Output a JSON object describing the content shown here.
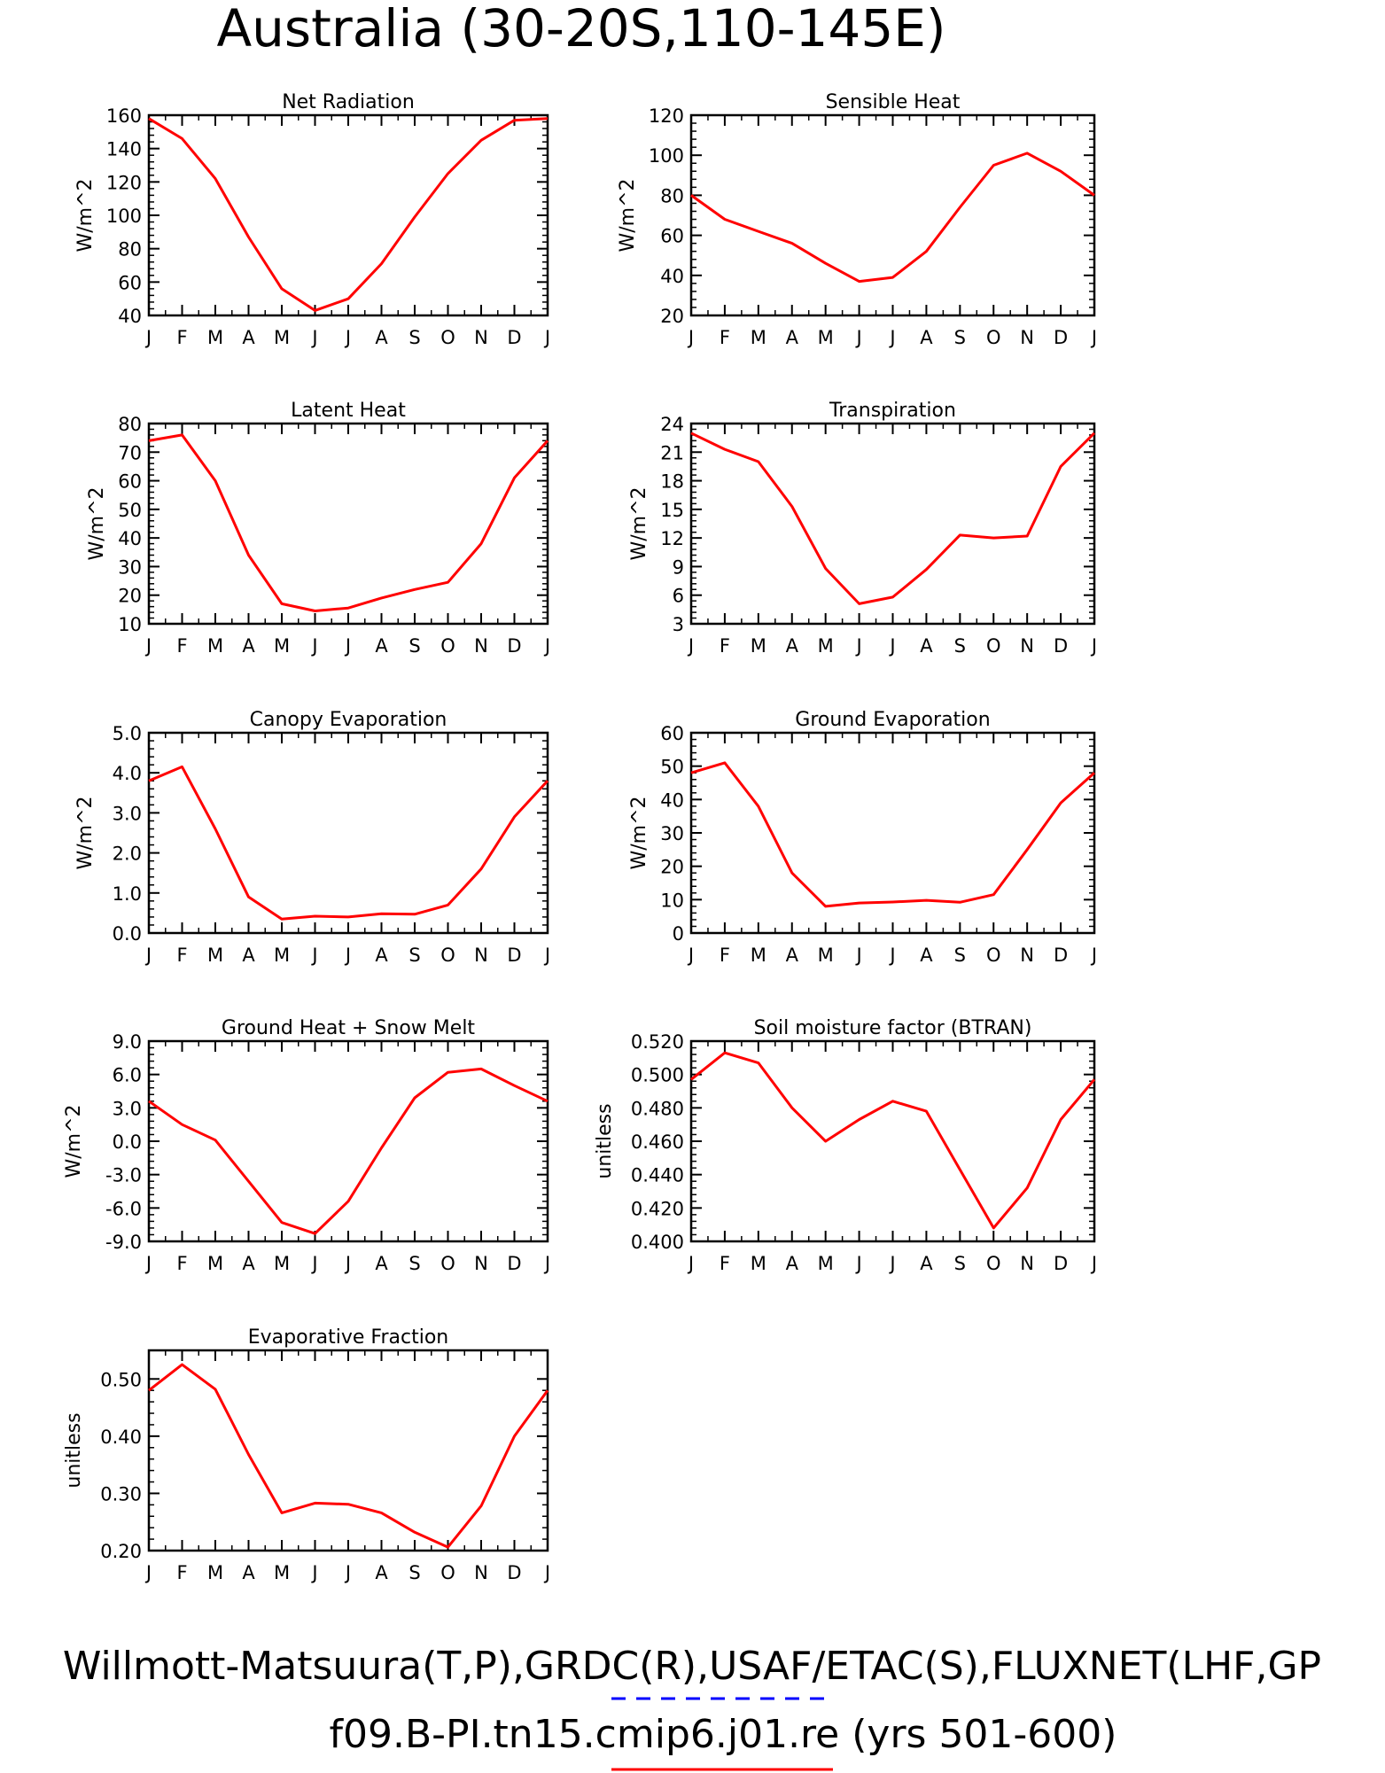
{
  "figure": {
    "title": "Australia (30-20S,110-145E)",
    "footer_line1": "Willmott-Matsuura(T,P),GRDC(R),USAF/ETAC(S),FLUXNET(LHF,GP",
    "footer_line2": "f09.B-PI.tn15.cmip6.j01.re (yrs 501-600)",
    "obs_line_color": "#0000ff",
    "model_line_color": "#ff0000"
  },
  "chart_data": [
    {
      "type": "line",
      "title": "Net Radiation",
      "ylabel": "W/m^2",
      "x": [
        "J",
        "F",
        "M",
        "A",
        "M",
        "J",
        "J",
        "A",
        "S",
        "O",
        "N",
        "D",
        "J"
      ],
      "ylim": [
        40,
        160
      ],
      "yticks": [
        "40",
        "60",
        "80",
        "100",
        "120",
        "140",
        "160"
      ],
      "series": [
        {
          "values": [
            158,
            146,
            122,
            87,
            56,
            43,
            50,
            71,
            99,
            125,
            145,
            157,
            158
          ]
        }
      ]
    },
    {
      "type": "line",
      "title": "Sensible Heat",
      "ylabel": "W/m^2",
      "x": [
        "J",
        "F",
        "M",
        "A",
        "M",
        "J",
        "J",
        "A",
        "S",
        "O",
        "N",
        "D",
        "J"
      ],
      "ylim": [
        20,
        120
      ],
      "yticks": [
        "20",
        "40",
        "60",
        "80",
        "100",
        "120"
      ],
      "series": [
        {
          "values": [
            80,
            68,
            62,
            56,
            46,
            37,
            39,
            52,
            74,
            95,
            101,
            92,
            80
          ]
        }
      ]
    },
    {
      "type": "line",
      "title": "Latent Heat",
      "ylabel": "W/m^2",
      "x": [
        "J",
        "F",
        "M",
        "A",
        "M",
        "J",
        "J",
        "A",
        "S",
        "O",
        "N",
        "D",
        "J"
      ],
      "ylim": [
        10,
        80
      ],
      "yticks": [
        "10",
        "20",
        "30",
        "40",
        "50",
        "60",
        "70",
        "80"
      ],
      "series": [
        {
          "values": [
            74,
            76,
            60,
            34,
            17,
            14.5,
            15.5,
            19,
            22,
            24.5,
            38,
            61,
            74
          ]
        }
      ]
    },
    {
      "type": "line",
      "title": "Transpiration",
      "ylabel": "W/m^2",
      "x": [
        "J",
        "F",
        "M",
        "A",
        "M",
        "J",
        "J",
        "A",
        "S",
        "O",
        "N",
        "D",
        "J"
      ],
      "ylim": [
        3,
        24
      ],
      "yticks": [
        "3",
        "6",
        "9",
        "12",
        "15",
        "18",
        "21",
        "24"
      ],
      "series": [
        {
          "values": [
            23,
            21.3,
            20,
            15.3,
            8.8,
            5.1,
            5.8,
            8.7,
            12.3,
            12,
            12.2,
            19.5,
            23
          ]
        }
      ]
    },
    {
      "type": "line",
      "title": "Canopy Evaporation",
      "ylabel": "W/m^2",
      "x": [
        "J",
        "F",
        "M",
        "A",
        "M",
        "J",
        "J",
        "A",
        "S",
        "O",
        "N",
        "D",
        "J"
      ],
      "ylim": [
        0,
        5
      ],
      "yticks": [
        "0.0",
        "1.0",
        "2.0",
        "3.0",
        "4.0",
        "5.0"
      ],
      "series": [
        {
          "values": [
            3.8,
            4.15,
            2.6,
            0.9,
            0.35,
            0.42,
            0.4,
            0.48,
            0.47,
            0.7,
            1.6,
            2.9,
            3.8
          ]
        }
      ]
    },
    {
      "type": "line",
      "title": "Ground Evaporation",
      "ylabel": "W/m^2",
      "x": [
        "J",
        "F",
        "M",
        "A",
        "M",
        "J",
        "J",
        "A",
        "S",
        "O",
        "N",
        "D",
        "J"
      ],
      "ylim": [
        0,
        60
      ],
      "yticks": [
        "0",
        "10",
        "20",
        "30",
        "40",
        "50",
        "60"
      ],
      "series": [
        {
          "values": [
            48,
            51,
            38,
            18,
            8,
            9,
            9.3,
            9.8,
            9.2,
            11.5,
            25,
            39,
            48
          ]
        }
      ]
    },
    {
      "type": "line",
      "title": "Ground Heat + Snow Melt",
      "ylabel": "W/m^2",
      "x": [
        "J",
        "F",
        "M",
        "A",
        "M",
        "J",
        "J",
        "A",
        "S",
        "O",
        "N",
        "D",
        "J"
      ],
      "ylim": [
        -9,
        9
      ],
      "yticks": [
        "-9.0",
        "-6.0",
        "-3.0",
        "0.0",
        "3.0",
        "6.0",
        "9.0"
      ],
      "series": [
        {
          "values": [
            3.6,
            1.5,
            0.1,
            -3.6,
            -7.3,
            -8.3,
            -5.4,
            -0.6,
            3.9,
            6.2,
            6.5,
            5.0,
            3.6
          ]
        }
      ]
    },
    {
      "type": "line",
      "title": "Soil moisture factor (BTRAN)",
      "ylabel": "unitless",
      "x": [
        "J",
        "F",
        "M",
        "A",
        "M",
        "J",
        "J",
        "A",
        "S",
        "O",
        "N",
        "D",
        "J"
      ],
      "ylim": [
        0.4,
        0.52
      ],
      "yticks": [
        "0.400",
        "0.420",
        "0.440",
        "0.460",
        "0.480",
        "0.500",
        "0.520"
      ],
      "series": [
        {
          "values": [
            0.497,
            0.513,
            0.507,
            0.48,
            0.46,
            0.473,
            0.484,
            0.478,
            0.443,
            0.408,
            0.432,
            0.473,
            0.497
          ]
        }
      ]
    },
    {
      "type": "line",
      "title": "Evaporative Fraction",
      "ylabel": "unitless",
      "x": [
        "J",
        "F",
        "M",
        "A",
        "M",
        "J",
        "J",
        "A",
        "S",
        "O",
        "N",
        "D",
        "J"
      ],
      "ylim": [
        0.2,
        0.55
      ],
      "yticks": [
        "0.20",
        "0.30",
        "0.40",
        "0.50"
      ],
      "series": [
        {
          "values": [
            0.48,
            0.525,
            0.482,
            0.368,
            0.266,
            0.283,
            0.281,
            0.266,
            0.232,
            0.206,
            0.278,
            0.4,
            0.48
          ]
        }
      ]
    }
  ]
}
